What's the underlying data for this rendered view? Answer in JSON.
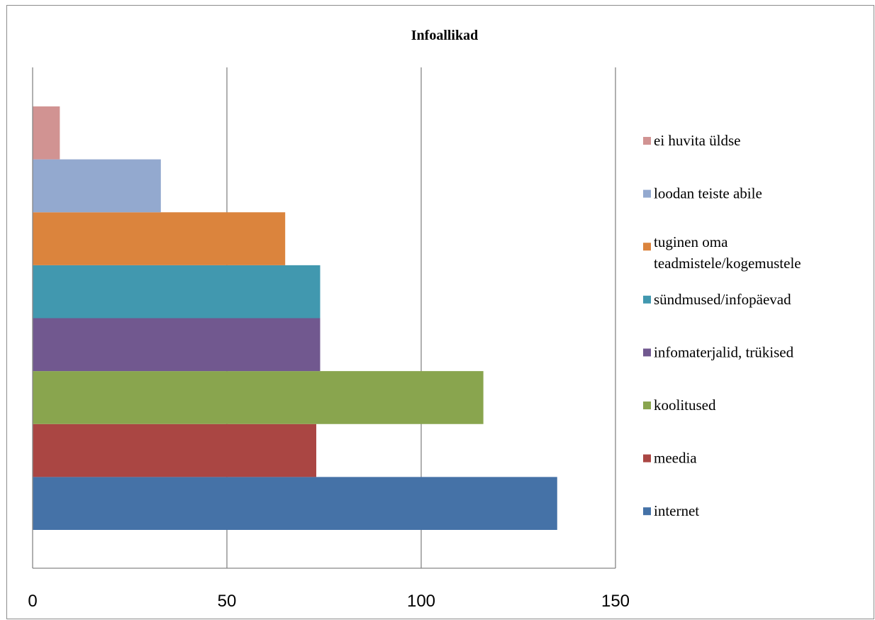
{
  "chart_data": {
    "type": "bar",
    "orientation": "horizontal",
    "title": "Infoallikad",
    "xlabel": "",
    "ylabel": "",
    "xlim": [
      0,
      150
    ],
    "x_ticks": [
      0,
      50,
      100,
      150
    ],
    "x_tick_labels": [
      "0",
      "50",
      "100",
      "150"
    ],
    "grid": "vertical",
    "legend_position": "right",
    "categories": [
      "internet",
      "meedia",
      "koolitused",
      "infomaterjalid, trükised",
      "sündmused/infopäevad",
      "tuginen oma teadmistele/kogemustele",
      "loodan teiste abile",
      "ei huvita üldse"
    ],
    "legend_lines": [
      [
        "internet"
      ],
      [
        "meedia"
      ],
      [
        "koolitused"
      ],
      [
        "infomaterjalid, trükised"
      ],
      [
        "sündmused/infopäevad"
      ],
      [
        "tuginen oma",
        "teadmistele/kogemustele"
      ],
      [
        "loodan teiste abile"
      ],
      [
        "ei huvita üldse"
      ]
    ],
    "values": [
      135,
      73,
      116,
      74,
      74,
      65,
      33,
      7
    ],
    "colors": [
      "#4572A7",
      "#AA4643",
      "#89A54E",
      "#71588F",
      "#4198AF",
      "#DB843D",
      "#93A9CF",
      "#D19392"
    ]
  }
}
